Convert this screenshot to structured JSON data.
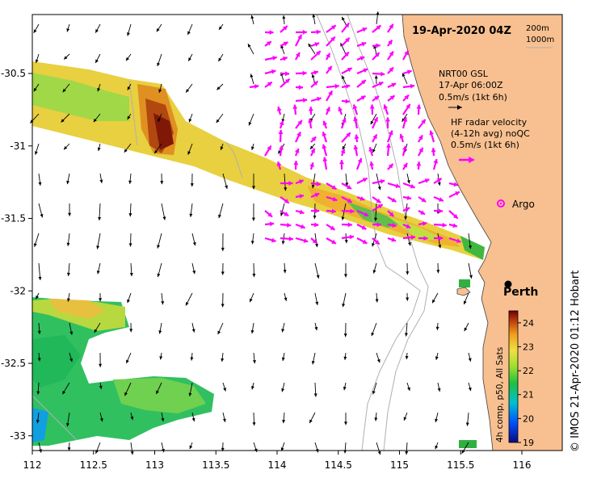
{
  "title": "19-Apr-2020 04Z",
  "scale_legend": {
    "depth_200": "200m",
    "depth_1000": "1000m"
  },
  "model_legend": {
    "line1": "NRT00 GSL",
    "line2": "17-Apr 06:00Z",
    "speed": "0.5m/s (1kt 6h)"
  },
  "radar_legend": {
    "line1": "HF radar velocity",
    "line2": "(4-12h avg) noQC",
    "speed": "0.5m/s (1kt 6h)"
  },
  "markers": {
    "argo": {
      "label": "Argo",
      "lon": 115.85,
      "lat": -31.45
    },
    "perth": {
      "label": "Perth",
      "lon": 115.86,
      "lat": -31.95
    }
  },
  "axes": {
    "x_ticks": [
      "112",
      "112.5",
      "113",
      "113.5",
      "114",
      "114.5",
      "115",
      "115.5",
      "116"
    ],
    "y_ticks": [
      "-30.5",
      "-31",
      "-31.5",
      "-32",
      "-32.5",
      "-33"
    ],
    "lon_range": [
      112,
      116.3
    ],
    "lat_range": [
      -33.1,
      -30.1
    ]
  },
  "colorbar": {
    "label": "4h comp, p50, All Sats",
    "ticks": [
      "24",
      "23",
      "22",
      "21",
      "20",
      "19"
    ],
    "range": [
      19,
      24.5
    ]
  },
  "credit": "© IMOS 21-Apr-2020 01:12 Hobart",
  "colors": {
    "land": "#f8c090",
    "radar_arrow": "#ff00ff",
    "model_arrow": "#000000",
    "bathymetry": "#b0b0b0"
  }
}
